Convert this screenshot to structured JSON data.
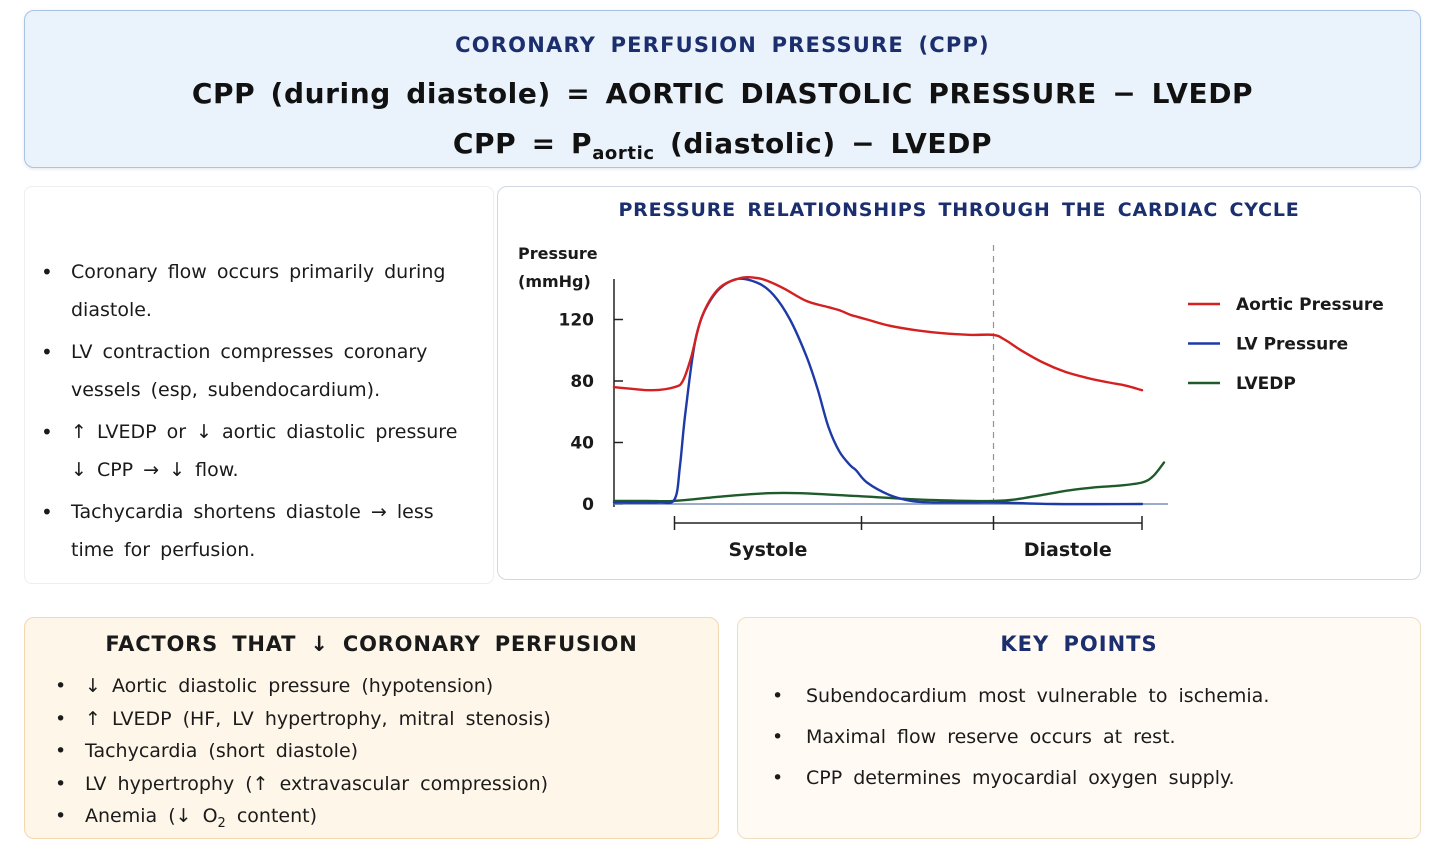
{
  "header": {
    "title": "CORONARY PERFUSION PRESSURE (CPP)",
    "formula_1": "CPP (during diastole) = AORTIC DIASTOLIC PRESSURE − LVEDP",
    "formula_2_prefix": "CPP = P",
    "formula_2_sub": "aortic",
    "formula_2_suffix": " (diastolic) − LVEDP"
  },
  "notes": [
    "Coronary flow occurs primarily during diastole.",
    "LV contraction compresses coronary vessels (esp, subendocardium).",
    "↑ LVEDP or ↓ aortic diastolic pressure ↓ CPP → ↓ flow.",
    "Tachycardia shortens diastole → less time for perfusion."
  ],
  "chart_data": {
    "type": "line",
    "title": "PRESSURE RELATIONSHIPS THROUGH THE CARDIAC CYCLE",
    "ylabel_line1": "Pressure",
    "ylabel_line2": "(mmHg)",
    "yticks": [
      0,
      40,
      80,
      120
    ],
    "ylim": [
      0,
      150
    ],
    "xlim": [
      0,
      1
    ],
    "phase_labels": [
      "Systole",
      "Diastole"
    ],
    "phase_boundaries": [
      0.11,
      0.45,
      0.69,
      0.96
    ],
    "dashed_divider_x": 0.69,
    "legend_position": "right",
    "grid": false,
    "series": [
      {
        "name": "Aortic Pressure",
        "color": "#d42020",
        "x": [
          0.0,
          0.03,
          0.07,
          0.11,
          0.125,
          0.14,
          0.16,
          0.19,
          0.23,
          0.26,
          0.28,
          0.31,
          0.35,
          0.39,
          0.41,
          0.43,
          0.44,
          0.46,
          0.5,
          0.55,
          0.6,
          0.65,
          0.69,
          0.71,
          0.74,
          0.78,
          0.82,
          0.86,
          0.9,
          0.93,
          0.96
        ],
        "y": [
          76,
          75,
          74,
          76,
          80,
          95,
          122,
          140,
          147,
          147,
          145,
          140,
          132,
          128,
          126,
          123,
          122,
          120,
          116,
          113,
          111,
          110,
          110,
          107,
          100,
          92,
          86,
          82,
          79,
          77,
          74
        ]
      },
      {
        "name": "LV Pressure",
        "color": "#1e3aa8",
        "x": [
          0.0,
          0.08,
          0.11,
          0.12,
          0.13,
          0.15,
          0.18,
          0.22,
          0.26,
          0.29,
          0.32,
          0.35,
          0.37,
          0.39,
          0.41,
          0.43,
          0.44,
          0.46,
          0.5,
          0.54,
          0.58,
          0.62,
          0.66,
          0.7,
          0.8,
          0.96
        ],
        "y": [
          1,
          1,
          3,
          25,
          60,
          110,
          135,
          146,
          144,
          136,
          120,
          96,
          75,
          50,
          34,
          25,
          22,
          14,
          6,
          2,
          1,
          1,
          1,
          1,
          0,
          0
        ]
      },
      {
        "name": "LVEDP",
        "color": "#1f5a2a",
        "x": [
          0.0,
          0.06,
          0.11,
          0.2,
          0.28,
          0.34,
          0.45,
          0.55,
          0.65,
          0.69,
          0.73,
          0.78,
          0.83,
          0.88,
          0.92,
          0.96,
          0.98,
          1.0
        ],
        "y": [
          2,
          2,
          2,
          5,
          7,
          7,
          5,
          3,
          2,
          2,
          3,
          6,
          9,
          11,
          12,
          14,
          18,
          27
        ]
      }
    ]
  },
  "factors": {
    "title": "FACTORS THAT ↓ CORONARY PERFUSION",
    "items": [
      "↓ Aortic diastolic pressure (hypotension)",
      "↑ LVEDP (HF, LV hypertrophy, mitral stenosis)",
      "Tachycardia (short diastole)",
      "LV hypertrophy (↑ extravascular compression)"
    ],
    "anemia_prefix": "Anemia (↓ O",
    "anemia_sub": "2",
    "anemia_suffix": " content)"
  },
  "key_points": {
    "title": "KEY POINTS",
    "items": [
      "Subendocardium most vulnerable to ischemia.",
      "Maximal flow reserve occurs at rest.",
      "CPP determines myocardial oxygen supply."
    ]
  },
  "bullet": "•"
}
